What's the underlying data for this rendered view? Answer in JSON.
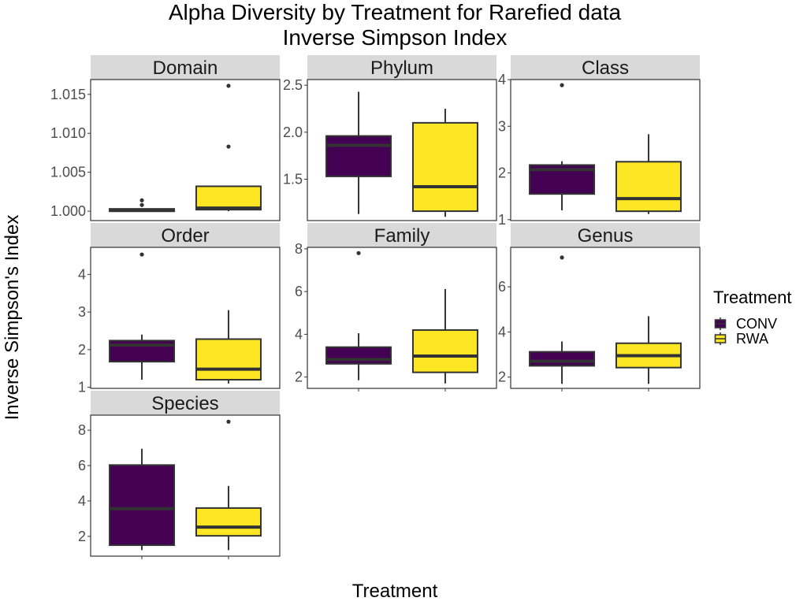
{
  "chart_data": {
    "type": "boxplot",
    "title": "Alpha Diversity by Treatment for Rarefied data",
    "subtitle": "Inverse Simpson Index",
    "xlabel": "Treatment",
    "ylabel": "Inverse Simpson's Index",
    "legend": {
      "title": "Treatment",
      "position": "right",
      "entries": [
        {
          "name": "CONV",
          "color": "#440154"
        },
        {
          "name": "RWA",
          "color": "#FDE725"
        }
      ]
    },
    "groups": [
      "CONV",
      "RWA"
    ],
    "panels": [
      {
        "name": "Domain",
        "ylim": [
          0.9988,
          1.0169
        ],
        "yticks": [
          1.0,
          1.005,
          1.01,
          1.015
        ],
        "ytick_labels": [
          "1.000",
          "1.005",
          "1.010",
          "1.015"
        ],
        "boxes": [
          {
            "group": "CONV",
            "min": 1.0,
            "q1": 1.0,
            "median": 1.0001,
            "q3": 1.0003,
            "max": 1.0003,
            "outliers": [
              1.0008,
              1.0014
            ]
          },
          {
            "group": "RWA",
            "min": 1.0,
            "q1": 1.0002,
            "median": 1.0004,
            "q3": 1.0032,
            "max": 1.0032,
            "outliers": [
              1.0083,
              1.0161
            ]
          }
        ]
      },
      {
        "name": "Phylum",
        "ylim": [
          1.06,
          2.56
        ],
        "yticks": [
          1.5,
          2.0,
          2.5
        ],
        "ytick_labels": [
          "1.5",
          "2.0",
          "2.5"
        ],
        "boxes": [
          {
            "group": "CONV",
            "min": 1.13,
            "q1": 1.53,
            "median": 1.86,
            "q3": 1.96,
            "max": 2.43,
            "outliers": []
          },
          {
            "group": "RWA",
            "min": 1.1,
            "q1": 1.16,
            "median": 1.42,
            "q3": 2.1,
            "max": 2.25,
            "outliers": []
          }
        ]
      },
      {
        "name": "Class",
        "ylim": [
          0.98,
          4.0
        ],
        "yticks": [
          1,
          2,
          3,
          4
        ],
        "ytick_labels": [
          "1",
          "2",
          "3",
          "4"
        ],
        "boxes": [
          {
            "group": "CONV",
            "min": 1.2,
            "q1": 1.55,
            "median": 2.07,
            "q3": 2.17,
            "max": 2.25,
            "outliers": [
              3.88
            ]
          },
          {
            "group": "RWA",
            "min": 1.12,
            "q1": 1.18,
            "median": 1.45,
            "q3": 2.24,
            "max": 2.83,
            "outliers": []
          }
        ]
      },
      {
        "name": "Order",
        "ylim": [
          0.97,
          4.72
        ],
        "yticks": [
          1,
          2,
          3,
          4
        ],
        "ytick_labels": [
          "1",
          "2",
          "3",
          "4"
        ],
        "boxes": [
          {
            "group": "CONV",
            "min": 1.2,
            "q1": 1.68,
            "median": 2.12,
            "q3": 2.24,
            "max": 2.4,
            "outliers": [
              4.53
            ]
          },
          {
            "group": "RWA",
            "min": 1.1,
            "q1": 1.2,
            "median": 1.48,
            "q3": 2.28,
            "max": 3.05,
            "outliers": []
          }
        ]
      },
      {
        "name": "Family",
        "ylim": [
          1.47,
          8.07
        ],
        "yticks": [
          2,
          4,
          6,
          8
        ],
        "ytick_labels": [
          "2",
          "4",
          "6",
          "8"
        ],
        "boxes": [
          {
            "group": "CONV",
            "min": 1.85,
            "q1": 2.62,
            "median": 2.82,
            "q3": 3.4,
            "max": 4.05,
            "outliers": [
              7.8
            ]
          },
          {
            "group": "RWA",
            "min": 1.7,
            "q1": 2.22,
            "median": 2.98,
            "q3": 4.2,
            "max": 6.12,
            "outliers": []
          }
        ]
      },
      {
        "name": "Genus",
        "ylim": [
          1.5,
          7.75
        ],
        "yticks": [
          2,
          4,
          6
        ],
        "ytick_labels": [
          "2",
          "4",
          "6"
        ],
        "boxes": [
          {
            "group": "CONV",
            "min": 1.7,
            "q1": 2.5,
            "median": 2.7,
            "q3": 3.12,
            "max": 3.58,
            "outliers": [
              7.3
            ]
          },
          {
            "group": "RWA",
            "min": 1.7,
            "q1": 2.42,
            "median": 2.95,
            "q3": 3.5,
            "max": 4.7,
            "outliers": []
          }
        ]
      },
      {
        "name": "Species",
        "ylim": [
          0.88,
          8.85
        ],
        "yticks": [
          2,
          4,
          6,
          8
        ],
        "ytick_labels": [
          "2",
          "4",
          "6",
          "8"
        ],
        "boxes": [
          {
            "group": "CONV",
            "min": 1.22,
            "q1": 1.5,
            "median": 3.56,
            "q3": 6.03,
            "max": 6.95,
            "outliers": []
          },
          {
            "group": "RWA",
            "min": 1.22,
            "q1": 2.03,
            "median": 2.52,
            "q3": 3.6,
            "max": 4.85,
            "outliers": [
              8.48
            ]
          }
        ]
      }
    ]
  }
}
